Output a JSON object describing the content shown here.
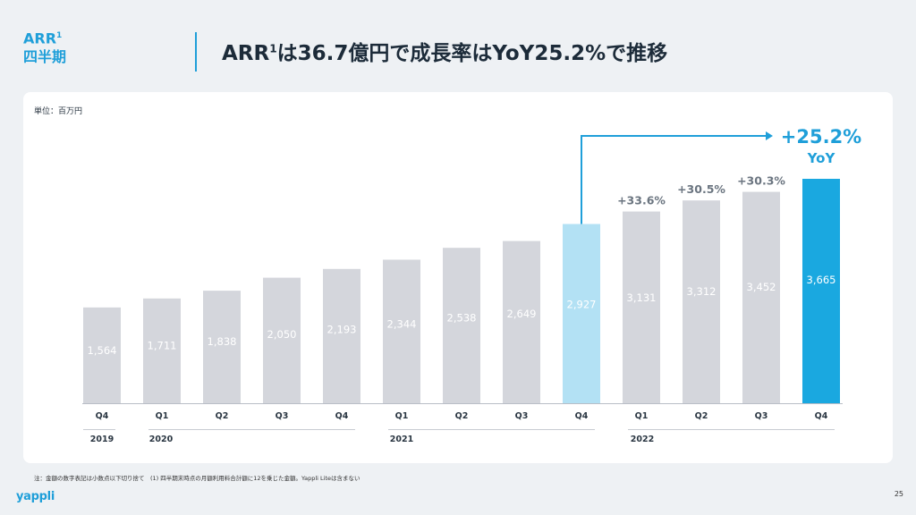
{
  "header": {
    "section_label_main": "ARR",
    "section_label_sup": "1",
    "section_label_sub": "四半期",
    "title_a": "ARR",
    "title_sup": "1",
    "title_b": "は36.7億円で成長率はYoY25.2%で推移"
  },
  "unit_label": "単位：百万円",
  "footnote": "注：金額の数字表記は小数点以下切り捨て　(1) 四半期末時点の月額利用料合計額に12を乗じた金額。Yappli Liteは含まない",
  "logo_text": "yappli",
  "page_number": "25",
  "colors": {
    "bar_default": "#d4d6dc",
    "bar_prev_year_q4": "#b3e1f4",
    "bar_highlight": "#1aa8e0",
    "accent": "#1f9fd9",
    "growth_label": "#6b7580",
    "value_label": "#ffffff"
  },
  "chart_data": {
    "type": "bar",
    "categories": [
      "Q4",
      "Q1",
      "Q2",
      "Q3",
      "Q4",
      "Q1",
      "Q2",
      "Q3",
      "Q4",
      "Q1",
      "Q2",
      "Q3",
      "Q4"
    ],
    "values": [
      1564,
      1711,
      1838,
      2050,
      2193,
      2344,
      2538,
      2649,
      2927,
      3131,
      3312,
      3452,
      3665
    ],
    "value_labels": [
      "1,564",
      "1,711",
      "1,838",
      "2,050",
      "2,193",
      "2,344",
      "2,538",
      "2,649",
      "2,927",
      "3,131",
      "3,312",
      "3,452",
      "3,665"
    ],
    "years": [
      {
        "label": "2019",
        "start": 0,
        "end": 0
      },
      {
        "label": "2020",
        "start": 1,
        "end": 4
      },
      {
        "label": "2021",
        "start": 5,
        "end": 8
      },
      {
        "label": "2022",
        "start": 9,
        "end": 12
      }
    ],
    "growth_labels": [
      {
        "index": 9,
        "text": "+33.6%"
      },
      {
        "index": 10,
        "text": "+30.5%"
      },
      {
        "index": 11,
        "text": "+30.3%"
      }
    ],
    "yoy_callout": {
      "from": 8,
      "to": 12,
      "value": "+25.2%",
      "label": "YoY"
    },
    "highlight_index": 12,
    "prior_year_index": 8,
    "ylim": [
      0,
      3665
    ]
  }
}
